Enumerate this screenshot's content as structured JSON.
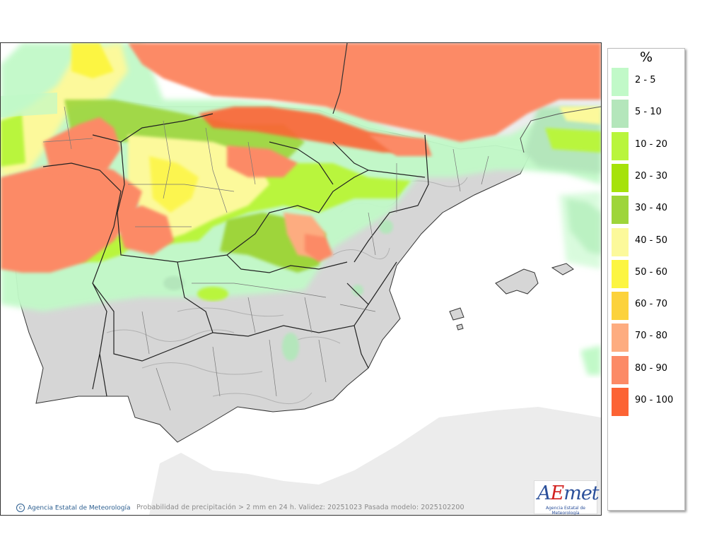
{
  "map": {
    "caption": "Probabilidad de precipitación > 2 mm en 24 h. Validez: 20251023 Pasada modelo: 2025102200",
    "credit": "Agencia Estatal de Meteorología",
    "logo": {
      "word_a": "A",
      "word_e": "E",
      "word_rest": "met",
      "subtitle": "Agencia Estatal de Meteorología"
    },
    "colors": {
      "sea": "#ffffff",
      "land": "#d6d6d6",
      "outside_land": "#ececec",
      "border": "#333333"
    }
  },
  "legend": {
    "title": "%",
    "items": [
      {
        "label": "2 - 5",
        "color": "#c1f9c8"
      },
      {
        "label": "5 - 10",
        "color": "#b4e6bb"
      },
      {
        "label": "10 - 20",
        "color": "#b9f53c"
      },
      {
        "label": "20 - 30",
        "color": "#a6e20a"
      },
      {
        "label": "30 - 40",
        "color": "#9ed53a"
      },
      {
        "label": "40 - 50",
        "color": "#fcf99b"
      },
      {
        "label": "50 - 60",
        "color": "#fcf542"
      },
      {
        "label": "60 - 70",
        "color": "#fcd23c"
      },
      {
        "label": "70 - 80",
        "color": "#fdac80"
      },
      {
        "label": "80 - 90",
        "color": "#fc8a66"
      },
      {
        "label": "90 - 100",
        "color": "#fc6334"
      }
    ]
  }
}
